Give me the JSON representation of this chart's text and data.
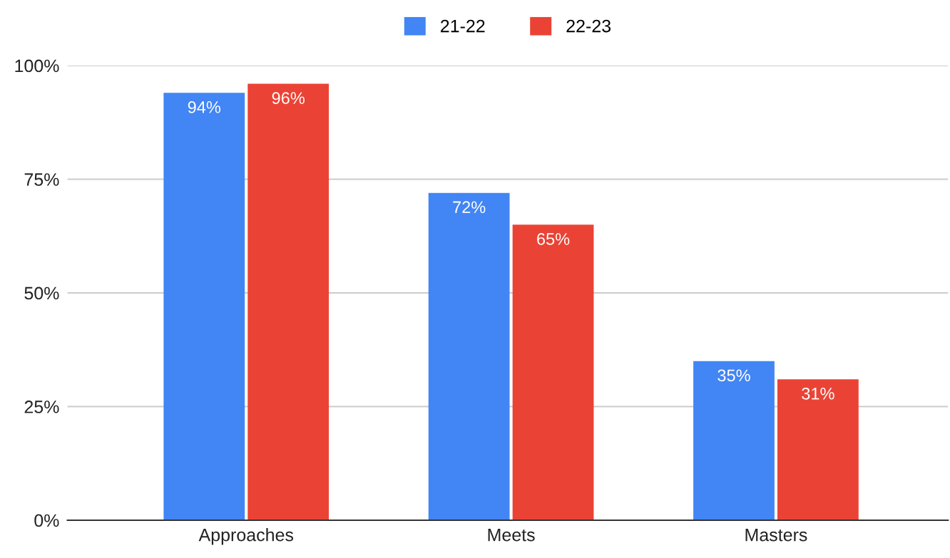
{
  "chart_data": {
    "type": "bar",
    "categories": [
      "Approaches",
      "Meets",
      "Masters"
    ],
    "series": [
      {
        "name": "21-22",
        "color": "#4285f4",
        "values": [
          94,
          72,
          35
        ],
        "value_labels": [
          "94%",
          "72%",
          "35%"
        ]
      },
      {
        "name": "22-23",
        "color": "#ea4335",
        "values": [
          96,
          65,
          31
        ],
        "value_labels": [
          "96%",
          "65%",
          "31%"
        ]
      }
    ],
    "ylim": [
      0,
      100
    ],
    "yticks": [
      {
        "value": 0,
        "label": "0%"
      },
      {
        "value": 25,
        "label": "25%"
      },
      {
        "value": 50,
        "label": "50%"
      },
      {
        "value": 75,
        "label": "75%"
      },
      {
        "value": 100,
        "label": "100%"
      }
    ],
    "grid": "y",
    "legend": "top"
  }
}
